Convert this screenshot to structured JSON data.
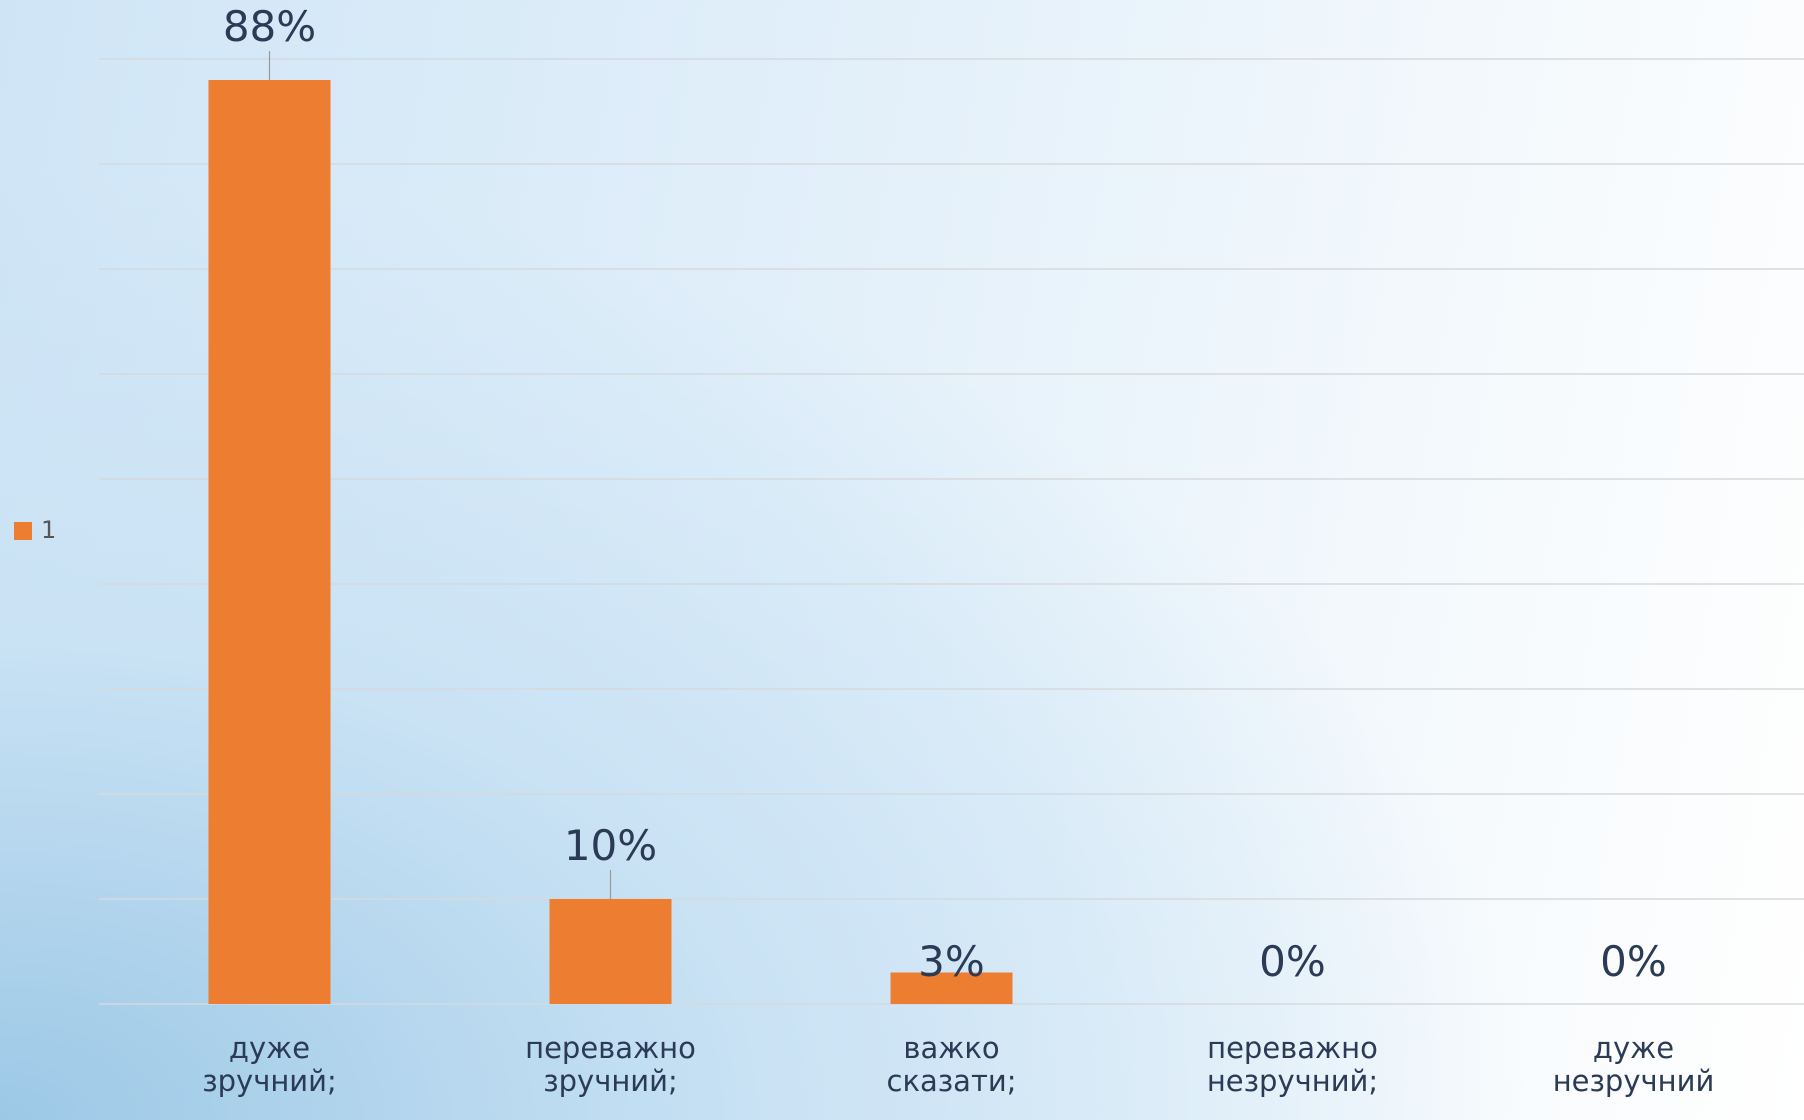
{
  "chart_data": {
    "type": "bar",
    "categories": [
      "дуже зручний;",
      "переважно зручний;",
      "важко сказати;",
      "переважно незручний;",
      "дуже незручний"
    ],
    "series": [
      {
        "name": "1",
        "color": "#ed7d31",
        "values": [
          88,
          10,
          3,
          0,
          0
        ],
        "value_labels": [
          "88%",
          "10%",
          "3%",
          "0%",
          "0%"
        ]
      }
    ],
    "ylim": [
      0,
      90
    ],
    "yticks": [
      0,
      10,
      20,
      30,
      40,
      50,
      60,
      70,
      80,
      90
    ],
    "grid": true,
    "legend": "left"
  }
}
